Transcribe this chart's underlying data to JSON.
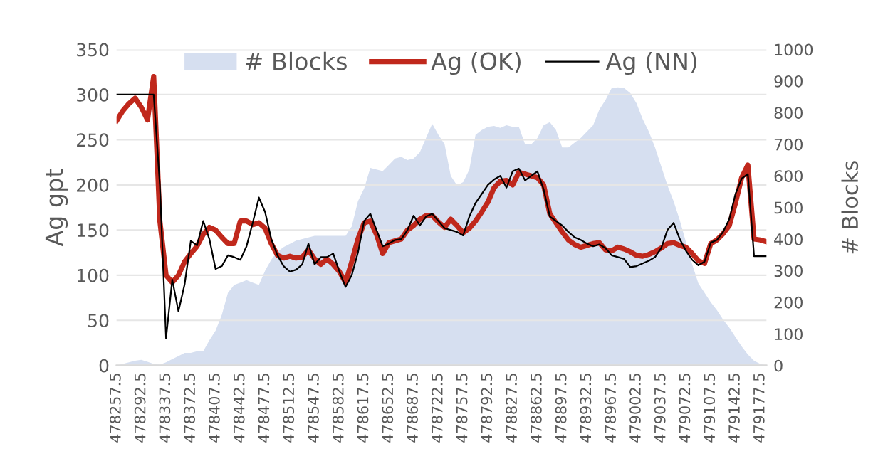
{
  "chart_data": {
    "type": "line",
    "categories": [
      "478257.5",
      null,
      null,
      null,
      "478292.5",
      null,
      null,
      null,
      "478337.5",
      null,
      null,
      null,
      "478372.5",
      null,
      null,
      null,
      "478407.5",
      null,
      null,
      null,
      "478442.5",
      null,
      null,
      null,
      "478477.5",
      null,
      null,
      null,
      "478512.5",
      null,
      null,
      null,
      "478547.5",
      null,
      null,
      null,
      "478582.5",
      null,
      null,
      null,
      "478617.5",
      null,
      null,
      null,
      "478652.5",
      null,
      null,
      null,
      "478687.5",
      null,
      null,
      null,
      "478722.5",
      null,
      null,
      null,
      "478757.5",
      null,
      null,
      null,
      "478792.5",
      null,
      null,
      null,
      "478827.5",
      null,
      null,
      null,
      "478862.5",
      null,
      null,
      null,
      "478897.5",
      null,
      null,
      null,
      "478932.5",
      null,
      null,
      null,
      "478967.5",
      null,
      null,
      null,
      "479002.5",
      null,
      null,
      null,
      "479037.5",
      null,
      null,
      null,
      "479072.5",
      null,
      null,
      null,
      "479107.5",
      null,
      null,
      null,
      "479142.5",
      null,
      null,
      null,
      "479177.5",
      null
    ],
    "series": [
      {
        "name": "# Blocks",
        "type": "area",
        "axis": "y2",
        "color": "#d6dff0",
        "values": [
          0,
          5,
          10,
          15,
          18,
          12,
          5,
          3,
          10,
          20,
          30,
          40,
          40,
          45,
          45,
          80,
          110,
          160,
          230,
          255,
          262,
          270,
          262,
          255,
          300,
          335,
          360,
          375,
          385,
          395,
          400,
          405,
          410,
          410,
          410,
          410,
          410,
          410,
          440,
          520,
          560,
          625,
          620,
          615,
          635,
          655,
          660,
          650,
          655,
          675,
          720,
          765,
          730,
          700,
          600,
          570,
          580,
          620,
          730,
          745,
          755,
          758,
          752,
          760,
          755,
          755,
          700,
          700,
          720,
          760,
          770,
          745,
          690,
          690,
          705,
          720,
          740,
          760,
          810,
          840,
          878,
          880,
          878,
          862,
          830,
          780,
          740,
          690,
          630,
          570,
          520,
          460,
          390,
          320,
          260,
          230,
          200,
          175,
          145,
          120,
          90,
          60,
          35,
          15,
          5,
          0
        ]
      },
      {
        "name": "Ag (OK)",
        "color": "#c0281c",
        "values": [
          271,
          282,
          290,
          296,
          286,
          272,
          320,
          160,
          100,
          92,
          100,
          115,
          124,
          132,
          145,
          153,
          150,
          142,
          135,
          135,
          160,
          160,
          156,
          158,
          152,
          135,
          122,
          119,
          121,
          119,
          120,
          128,
          118,
          112,
          118,
          112,
          104,
          92,
          115,
          140,
          158,
          160,
          145,
          124,
          136,
          138,
          140,
          150,
          155,
          162,
          166,
          166,
          159,
          153,
          162,
          155,
          147,
          152,
          160,
          170,
          181,
          197,
          204,
          205,
          200,
          214,
          212,
          210,
          208,
          200,
          168,
          158,
          148,
          139,
          134,
          131,
          133,
          135,
          136,
          128,
          127,
          131,
          129,
          126,
          122,
          121,
          123,
          126,
          130,
          135,
          136,
          133,
          131,
          124,
          116,
          113,
          135,
          139,
          146,
          155,
          180,
          208,
          222,
          140,
          139,
          137
        ]
      },
      {
        "name": "Ag (NN)",
        "color": "#000000",
        "values": [
          300,
          300,
          300,
          300,
          300,
          300,
          300,
          200,
          30,
          95,
          60,
          90,
          138,
          133,
          160,
          140,
          107,
          110,
          122,
          120,
          117,
          132,
          158,
          186,
          170,
          140,
          122,
          110,
          104,
          106,
          112,
          135,
          112,
          120,
          120,
          124,
          104,
          87,
          100,
          125,
          160,
          168,
          150,
          132,
          135,
          139,
          140,
          150,
          166,
          155,
          165,
          168,
          160,
          152,
          150,
          148,
          144,
          165,
          180,
          190,
          200,
          206,
          210,
          197,
          215,
          218,
          205,
          210,
          215,
          195,
          165,
          160,
          155,
          148,
          142,
          139,
          135,
          132,
          134,
          130,
          122,
          120,
          118,
          109,
          110,
          113,
          116,
          120,
          130,
          150,
          158,
          140,
          127,
          117,
          111,
          115,
          136,
          139,
          148,
          162,
          190,
          207,
          212,
          121,
          121,
          121
        ]
      }
    ],
    "ylabel": "Ag gpt",
    "y2label": "# Blocks",
    "ylim": [
      0,
      350
    ],
    "yticks": [
      0,
      50,
      100,
      150,
      200,
      250,
      300,
      350
    ],
    "y2lim": [
      0,
      1000
    ],
    "y2ticks": [
      0,
      100,
      200,
      300,
      400,
      500,
      600,
      700,
      800,
      900,
      1000
    ],
    "grid": "y",
    "legend": "top"
  }
}
